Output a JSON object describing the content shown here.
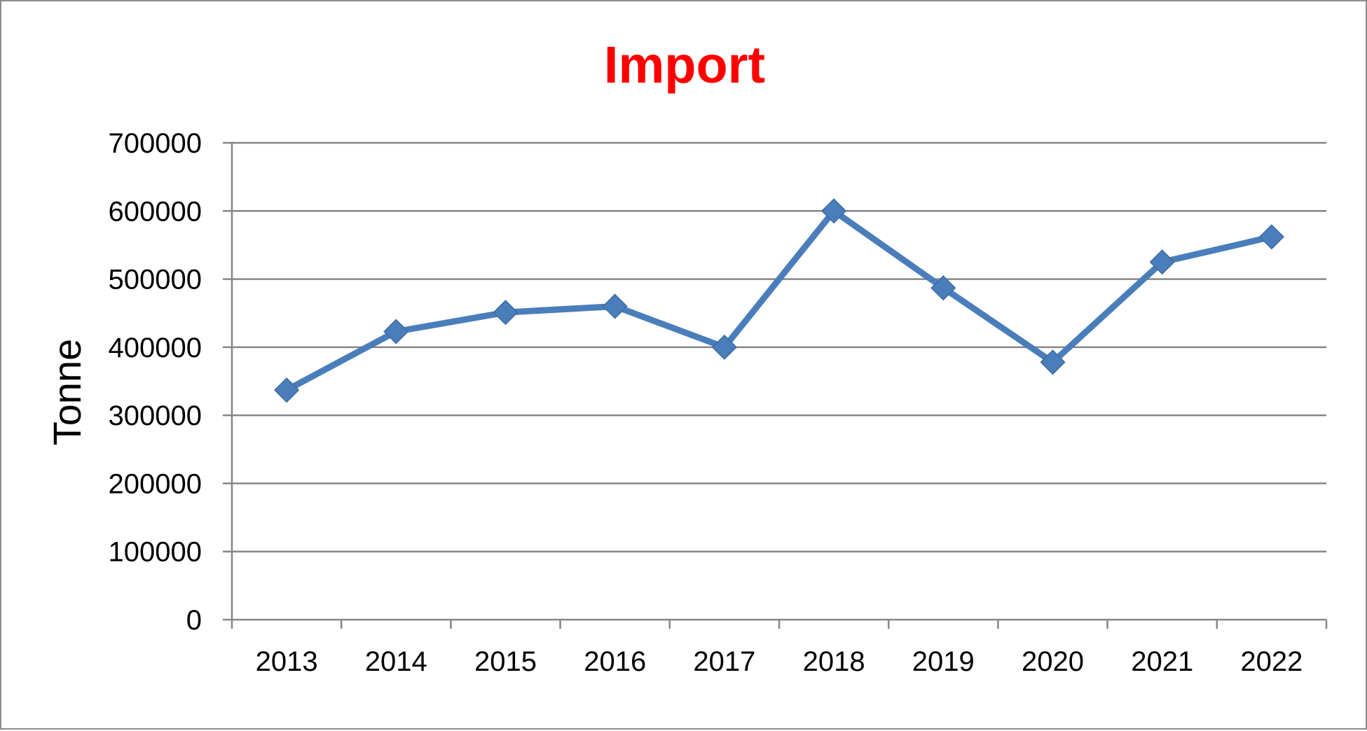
{
  "chart_data": {
    "type": "line",
    "title": "Import",
    "xlabel": "",
    "ylabel": "Tonne",
    "categories": [
      "2013",
      "2014",
      "2015",
      "2016",
      "2017",
      "2018",
      "2019",
      "2020",
      "2021",
      "2022"
    ],
    "series": [
      {
        "values": [
          337000,
          423000,
          451000,
          460000,
          400000,
          600000,
          487000,
          378000,
          525000,
          562000
        ],
        "color": "#4a7ebb",
        "marker": "diamond"
      }
    ],
    "ylim": [
      0,
      700000
    ],
    "yticks": [
      "0",
      "100000",
      "200000",
      "300000",
      "400000",
      "500000",
      "600000",
      "700000"
    ],
    "grid": true,
    "legend": "none",
    "colors": {
      "title": "#ff0000",
      "grid": "#868686",
      "axis": "#868686"
    }
  }
}
